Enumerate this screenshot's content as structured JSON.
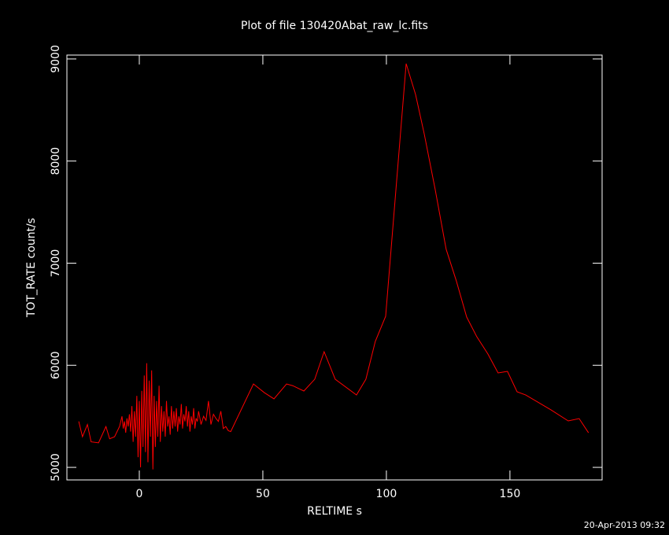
{
  "chart_data": {
    "type": "line",
    "title": "Plot of file 130420Abat_raw_lc.fits",
    "xlabel": "RELTIME  s",
    "ylabel": "TOT_RATE  count/s",
    "footer": "20-Apr-2013 09:32",
    "color": "#ff0000",
    "xlim": [
      -29.3,
      187.3
    ],
    "ylim": [
      4877,
      9038
    ],
    "xticks": [
      0,
      50,
      100,
      150
    ],
    "yticks": [
      5000,
      6000,
      7000,
      8000,
      9000
    ],
    "x": [
      -24.5,
      -23,
      -21,
      -19.5,
      -16.5,
      -13.5,
      -12,
      -10,
      -8,
      -7,
      -6.5,
      -6,
      -5.5,
      -5,
      -4.5,
      -4,
      -3.5,
      -3,
      -2.5,
      -2,
      -1.5,
      -1,
      -0.5,
      0,
      0.5,
      1,
      1.5,
      2,
      2.5,
      3,
      3.5,
      4,
      4.5,
      5,
      5.5,
      6,
      6.5,
      7,
      7.5,
      8,
      8.5,
      9,
      9.5,
      10,
      10.5,
      11,
      11.5,
      12,
      12.5,
      13,
      13.5,
      14,
      14.5,
      15,
      15.5,
      16,
      16.5,
      17,
      17.5,
      18,
      18.5,
      19,
      19.5,
      20,
      20.5,
      21,
      21.5,
      22,
      22.5,
      23,
      23.5,
      24,
      25,
      26,
      27,
      28,
      29,
      30,
      31,
      32,
      33,
      34,
      35,
      36,
      37,
      46.2,
      50.6,
      54.5,
      59.6,
      62.1,
      66.6,
      71.0,
      74.8,
      79.3,
      87.9,
      91.7,
      95.5,
      99.7,
      108.0,
      111.8,
      115.3,
      119.7,
      124.2,
      128.3,
      132.5,
      136.6,
      141.1,
      145.2,
      149.0,
      152.9,
      156.4,
      166.6,
      173.6,
      178.0,
      181.8
    ],
    "values": [
      5450,
      5300,
      5420,
      5250,
      5240,
      5400,
      5280,
      5300,
      5400,
      5500,
      5380,
      5450,
      5340,
      5480,
      5400,
      5520,
      5350,
      5600,
      5250,
      5550,
      5300,
      5700,
      5100,
      5650,
      5000,
      5750,
      5200,
      5900,
      5150,
      6020,
      5050,
      5850,
      5300,
      5950,
      4980,
      5700,
      5200,
      5650,
      5300,
      5800,
      5250,
      5600,
      5350,
      5550,
      5300,
      5650,
      5400,
      5500,
      5320,
      5600,
      5380,
      5550,
      5400,
      5580,
      5350,
      5500,
      5420,
      5620,
      5380,
      5520,
      5450,
      5600,
      5400,
      5550,
      5350,
      5500,
      5420,
      5580,
      5380,
      5480,
      5450,
      5550,
      5420,
      5500,
      5460,
      5650,
      5420,
      5520,
      5480,
      5450,
      5550,
      5380,
      5400,
      5360,
      5350,
      5817,
      5732,
      5671,
      5817,
      5800,
      5748,
      5863,
      6133,
      5863,
      5709,
      5863,
      6233,
      6480,
      8954,
      8653,
      8268,
      7728,
      7135,
      6827,
      6472,
      6279,
      6110,
      5925,
      5940,
      5740,
      5709,
      5563,
      5455,
      5478,
      5339
    ]
  }
}
